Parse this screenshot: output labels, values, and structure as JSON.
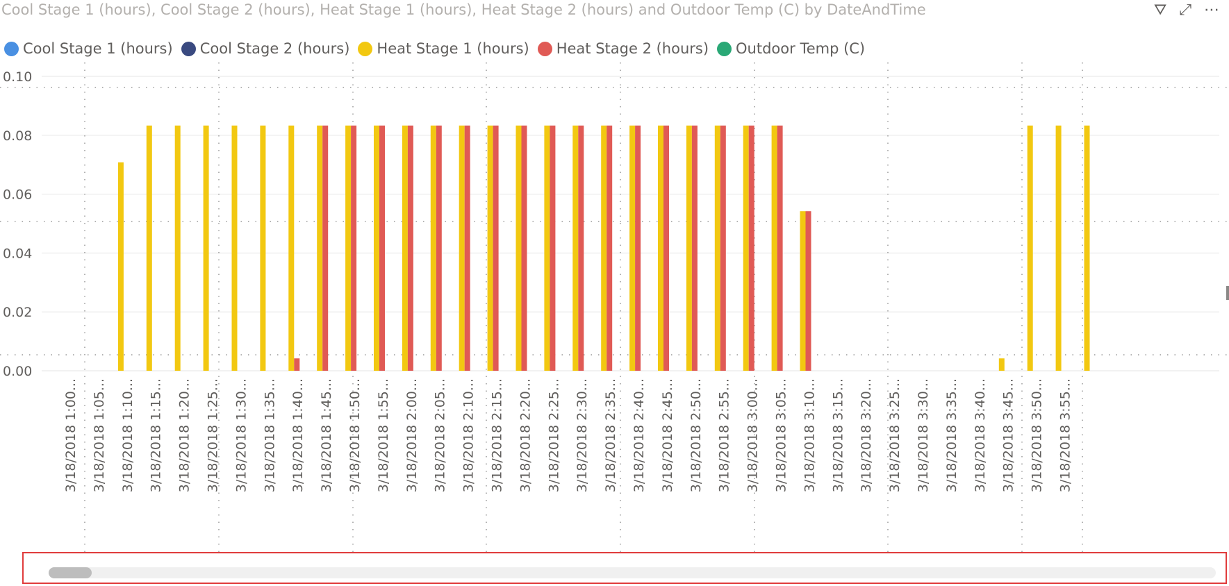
{
  "visual": {
    "title": "Cool Stage 1 (hours), Cool Stage 2 (hours), Heat Stage 1 (hours), Heat Stage 2 (hours) and Outdoor Temp (C) by DateAndTime",
    "header_icons": [
      {
        "name": "filter-icon",
        "glyph": "⛛"
      },
      {
        "name": "focus-mode-icon",
        "glyph": "⤢"
      },
      {
        "name": "more-options-icon",
        "glyph": "⋯"
      }
    ]
  },
  "legend": [
    {
      "label": "Cool Stage 1 (hours)",
      "color": "#4a90e2"
    },
    {
      "label": "Cool Stage 2 (hours)",
      "color": "#3a4a80"
    },
    {
      "label": "Heat Stage 1 (hours)",
      "color": "#f2c811"
    },
    {
      "label": "Heat Stage 2 (hours)",
      "color": "#e05a55"
    },
    {
      "label": "Outdoor Temp (C)",
      "color": "#2aa876"
    }
  ],
  "chart_data": {
    "type": "bar",
    "title": "Cool Stage 1 (hours), Cool Stage 2 (hours), Heat Stage 1 (hours), Heat Stage 2 (hours) and Outdoor Temp (C) by DateAndTime",
    "xlabel": "",
    "ylabel": "",
    "ylim": [
      0,
      0.1
    ],
    "yticks": [
      "0.00",
      "0.02",
      "0.04",
      "0.06",
      "0.08",
      "0.10"
    ],
    "grid": true,
    "legend_position": "top-left",
    "categories": [
      "3/18/2018 1:00...",
      "3/18/2018 1:05...",
      "3/18/2018 1:10...",
      "3/18/2018 1:15...",
      "3/18/2018 1:20...",
      "3/18/2018 1:25...",
      "3/18/2018 1:30...",
      "3/18/2018 1:35...",
      "3/18/2018 1:40...",
      "3/18/2018 1:45...",
      "3/18/2018 1:50...",
      "3/18/2018 1:55...",
      "3/18/2018 2:00...",
      "3/18/2018 2:05...",
      "3/18/2018 2:10...",
      "3/18/2018 2:15...",
      "3/18/2018 2:20...",
      "3/18/2018 2:25...",
      "3/18/2018 2:30...",
      "3/18/2018 2:35...",
      "3/18/2018 2:40...",
      "3/18/2018 2:45...",
      "3/18/2018 2:50...",
      "3/18/2018 2:55...",
      "3/18/2018 3:00...",
      "3/18/2018 3:05...",
      "3/18/2018 3:10...",
      "3/18/2018 3:15...",
      "3/18/2018 3:20...",
      "3/18/2018 3:25...",
      "3/18/2018 3:30...",
      "3/18/2018 3:35...",
      "3/18/2018 3:40...",
      "3/18/2018 3:45...",
      "3/18/2018 3:50...",
      "3/18/2018 3:55..."
    ],
    "series": [
      {
        "name": "Cool Stage 1 (hours)",
        "color": "#4a90e2",
        "values": [
          0,
          0,
          0,
          0,
          0,
          0,
          0,
          0,
          0,
          0,
          0,
          0,
          0,
          0,
          0,
          0,
          0,
          0,
          0,
          0,
          0,
          0,
          0,
          0,
          0,
          0,
          0,
          0,
          0,
          0,
          0,
          0,
          0,
          0,
          0,
          0
        ]
      },
      {
        "name": "Cool Stage 2 (hours)",
        "color": "#3a4a80",
        "values": [
          0,
          0,
          0,
          0,
          0,
          0,
          0,
          0,
          0,
          0,
          0,
          0,
          0,
          0,
          0,
          0,
          0,
          0,
          0,
          0,
          0,
          0,
          0,
          0,
          0,
          0,
          0,
          0,
          0,
          0,
          0,
          0,
          0,
          0,
          0,
          0
        ]
      },
      {
        "name": "Heat Stage 1 (hours)",
        "color": "#f2c811",
        "values": [
          0,
          0.0708,
          0.0833,
          0.0833,
          0.0833,
          0.0833,
          0.0833,
          0.0833,
          0.0833,
          0.0833,
          0.0833,
          0.0833,
          0.0833,
          0.0833,
          0.0833,
          0.0833,
          0.0833,
          0.0833,
          0.0833,
          0.0833,
          0.0833,
          0.0833,
          0.0833,
          0.0833,
          0.0833,
          0.0542,
          0,
          0,
          0,
          0,
          0,
          0,
          0.0042,
          0.0833,
          0.0833,
          0.0833
        ]
      },
      {
        "name": "Heat Stage 2 (hours)",
        "color": "#e05a55",
        "values": [
          0,
          0,
          0,
          0,
          0,
          0,
          0,
          0.0042,
          0.0833,
          0.0833,
          0.0833,
          0.0833,
          0.0833,
          0.0833,
          0.0833,
          0.0833,
          0.0833,
          0.0833,
          0.0833,
          0.0833,
          0.0833,
          0.0833,
          0.0833,
          0.0833,
          0.0833,
          0.0542,
          0,
          0,
          0,
          0,
          0,
          0,
          0,
          0,
          0,
          0
        ]
      },
      {
        "name": "Outdoor Temp (C)",
        "color": "#2aa876",
        "values": [
          0,
          0,
          0,
          0,
          0,
          0,
          0,
          0,
          0,
          0,
          0,
          0,
          0,
          0,
          0,
          0,
          0,
          0,
          0,
          0,
          0,
          0,
          0,
          0,
          0,
          0,
          0,
          0,
          0,
          0,
          0,
          0,
          0,
          0,
          0,
          0
        ]
      }
    ]
  },
  "scrollbar": {
    "position": 0
  }
}
